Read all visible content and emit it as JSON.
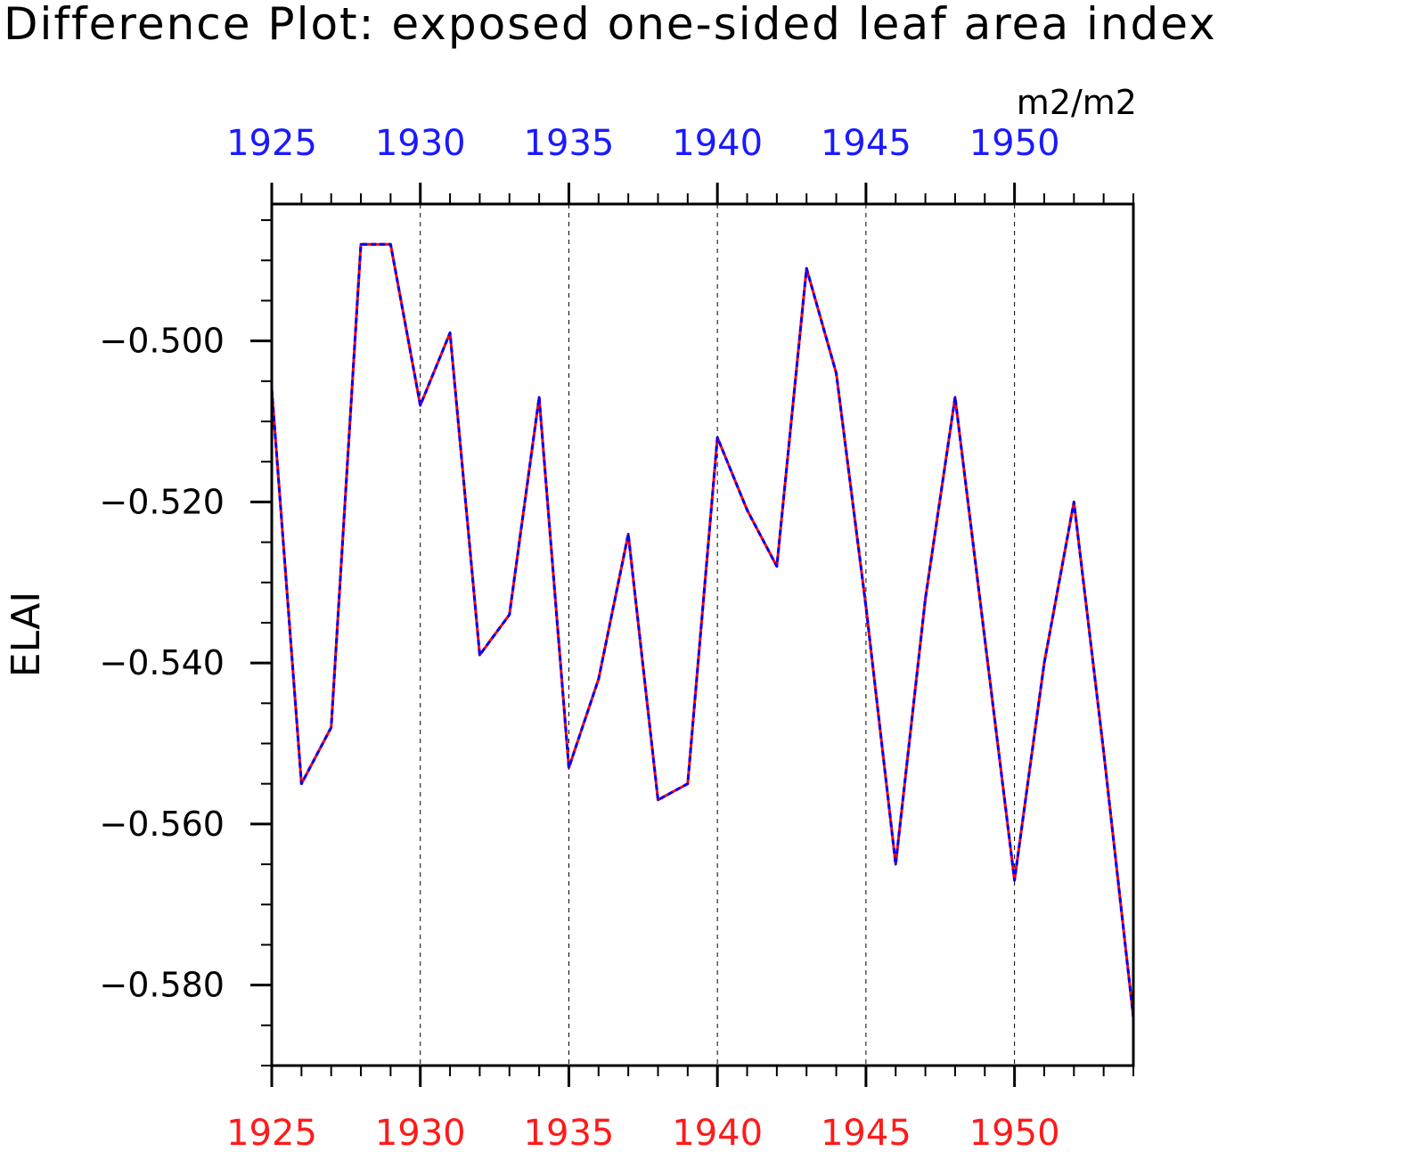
{
  "chart_data": {
    "type": "line",
    "title": "Difference Plot: exposed one-sided leaf area index",
    "units": "m2/m2",
    "ylabel": "ELAI",
    "xlabel": "",
    "x_range": [
      1925,
      1954
    ],
    "ylim": [
      -0.59,
      -0.483
    ],
    "y_ticks": [
      -0.5,
      -0.52,
      -0.54,
      -0.56,
      -0.58
    ],
    "y_tick_labels": [
      "−0.500",
      "−0.520",
      "−0.540",
      "−0.560",
      "−0.580"
    ],
    "x_ticks": [
      1925,
      1930,
      1935,
      1940,
      1945,
      1950
    ],
    "x_tick_labels_top": [
      "1925",
      "1930",
      "1935",
      "1940",
      "1945",
      "1950"
    ],
    "x_tick_labels_bottom": [
      "1925",
      "1930",
      "1935",
      "1940",
      "1945",
      "1950"
    ],
    "x_tick_color_top": "#1a1aff",
    "x_tick_color_bottom": "#ff1a1a",
    "grid": "vertical-dashed",
    "x": [
      1925,
      1926,
      1927,
      1928,
      1929,
      1930,
      1931,
      1932,
      1933,
      1934,
      1935,
      1936,
      1937,
      1938,
      1939,
      1940,
      1941,
      1942,
      1943,
      1944,
      1945,
      1946,
      1947,
      1948,
      1949,
      1950,
      1951,
      1952,
      1953,
      1954
    ],
    "series": [
      {
        "color": "#ff0000",
        "style": "solid",
        "values": [
          -0.506,
          -0.555,
          -0.548,
          -0.488,
          -0.488,
          -0.508,
          -0.499,
          -0.539,
          -0.534,
          -0.507,
          -0.553,
          -0.542,
          -0.524,
          -0.557,
          -0.555,
          -0.512,
          -0.521,
          -0.528,
          -0.491,
          -0.504,
          -0.533,
          -0.565,
          -0.532,
          -0.507,
          -0.537,
          -0.567,
          -0.54,
          -0.52,
          -0.551,
          -0.584
        ]
      },
      {
        "color": "#0000ff",
        "style": "dashed",
        "values": [
          -0.506,
          -0.555,
          -0.548,
          -0.488,
          -0.488,
          -0.508,
          -0.499,
          -0.539,
          -0.534,
          -0.507,
          -0.553,
          -0.542,
          -0.524,
          -0.557,
          -0.555,
          -0.512,
          -0.521,
          -0.528,
          -0.491,
          -0.504,
          -0.533,
          -0.565,
          -0.532,
          -0.507,
          -0.537,
          -0.567,
          -0.54,
          -0.52,
          -0.551,
          -0.584
        ]
      }
    ]
  }
}
